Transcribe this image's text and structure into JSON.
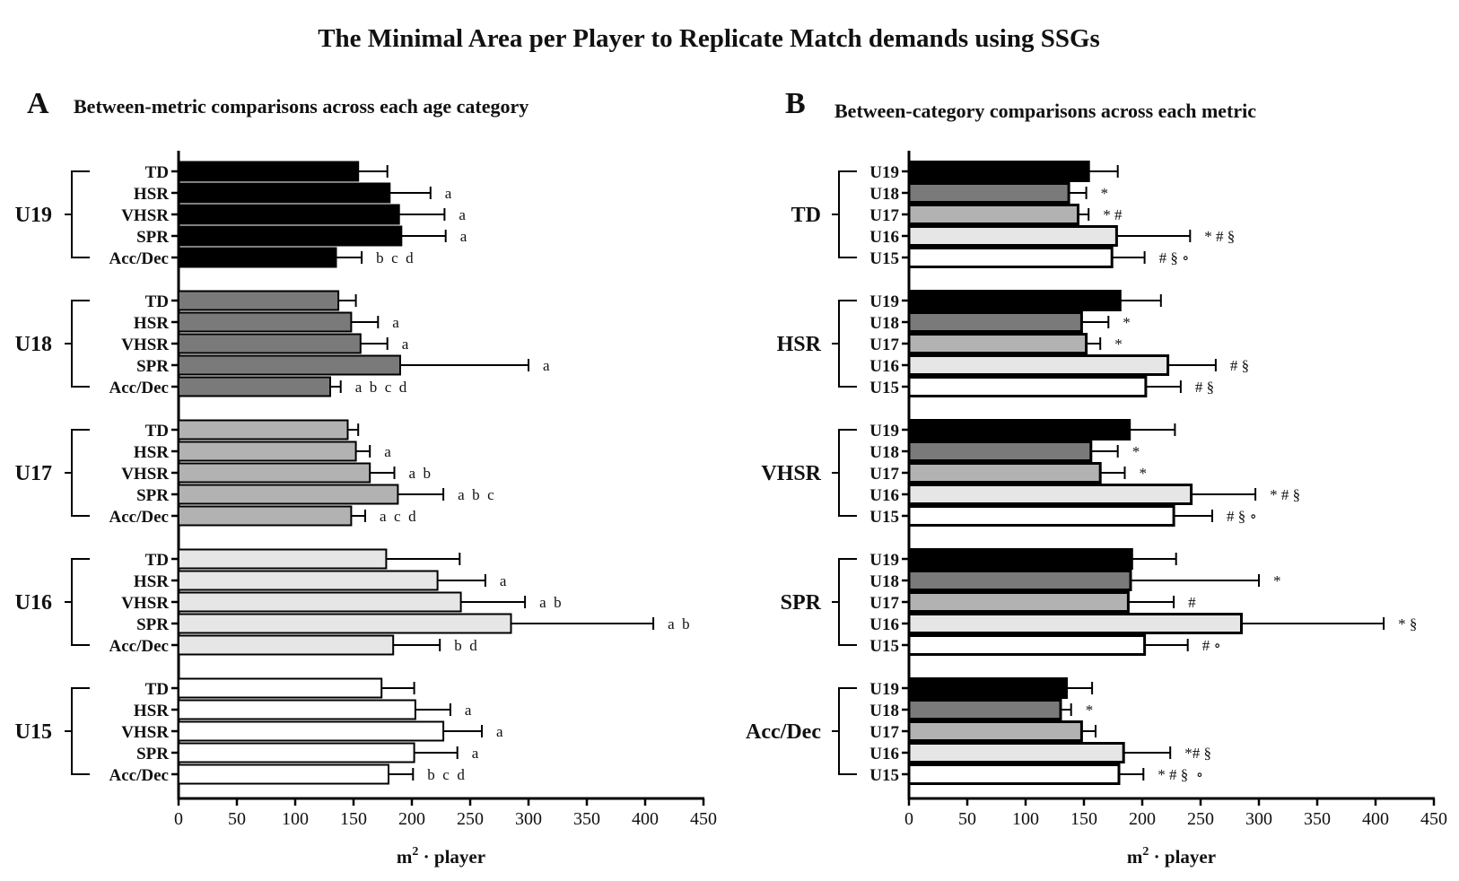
{
  "title": "The Minimal Area per Player to Replicate  Match demands using SSGs",
  "colors": {
    "U19": "#000000",
    "U18": "#7a7a7a",
    "U17": "#b2b2b2",
    "U16": "#e6e6e6",
    "U15": "#ffffff",
    "TD": "#000000",
    "HSR": "#666666",
    "VHSR": "#a6a6a6",
    "SPR": "#e0e0e0",
    "Acc/Dec": "#ffffff"
  },
  "chart_data": [
    {
      "panel": "A",
      "type": "bar",
      "orientation": "horizontal",
      "title": "Between-metric comparisons across each age category",
      "xlabel": "m2 · player",
      "xlabel_main": "m",
      "xlabel_sup": "2",
      "xlabel_rest": " · player",
      "xlim": [
        0,
        450
      ],
      "xticks": [
        0,
        50,
        100,
        150,
        200,
        250,
        300,
        350,
        400,
        450
      ],
      "groups": [
        {
          "name": "U19",
          "items": [
            {
              "label": "TD",
              "value": 154,
              "error": 25,
              "annotation": ""
            },
            {
              "label": "HSR",
              "value": 181,
              "error": 35,
              "annotation": "a"
            },
            {
              "label": "VHSR",
              "value": 189,
              "error": 39,
              "annotation": "a"
            },
            {
              "label": "SPR",
              "value": 191,
              "error": 38,
              "annotation": "a"
            },
            {
              "label": "Acc/Dec",
              "value": 135,
              "error": 22,
              "annotation": "b  c  d"
            }
          ]
        },
        {
          "name": "U18",
          "items": [
            {
              "label": "TD",
              "value": 137,
              "error": 15,
              "annotation": ""
            },
            {
              "label": "HSR",
              "value": 148,
              "error": 23,
              "annotation": "a"
            },
            {
              "label": "VHSR",
              "value": 156,
              "error": 23,
              "annotation": "a"
            },
            {
              "label": "SPR",
              "value": 190,
              "error": 110,
              "annotation": "a"
            },
            {
              "label": "Acc/Dec",
              "value": 130,
              "error": 9,
              "annotation": "a  b  c  d"
            }
          ]
        },
        {
          "name": "U17",
          "items": [
            {
              "label": "TD",
              "value": 145,
              "error": 9,
              "annotation": ""
            },
            {
              "label": "HSR",
              "value": 152,
              "error": 12,
              "annotation": "a"
            },
            {
              "label": "VHSR",
              "value": 164,
              "error": 21,
              "annotation": "a  b"
            },
            {
              "label": "SPR",
              "value": 188,
              "error": 39,
              "annotation": "a  b  c"
            },
            {
              "label": "Acc/Dec",
              "value": 148,
              "error": 12,
              "annotation": "a  c  d"
            }
          ]
        },
        {
          "name": "U16",
          "items": [
            {
              "label": "TD",
              "value": 178,
              "error": 63,
              "annotation": ""
            },
            {
              "label": "HSR",
              "value": 222,
              "error": 41,
              "annotation": "a"
            },
            {
              "label": "VHSR",
              "value": 242,
              "error": 55,
              "annotation": "a  b"
            },
            {
              "label": "SPR",
              "value": 285,
              "error": 122,
              "annotation": "a  b"
            },
            {
              "label": "Acc/Dec",
              "value": 184,
              "error": 40,
              "annotation": "b  d"
            }
          ]
        },
        {
          "name": "U15",
          "items": [
            {
              "label": "TD",
              "value": 174,
              "error": 28,
              "annotation": ""
            },
            {
              "label": "HSR",
              "value": 203,
              "error": 30,
              "annotation": "a"
            },
            {
              "label": "VHSR",
              "value": 227,
              "error": 33,
              "annotation": "a"
            },
            {
              "label": "SPR",
              "value": 202,
              "error": 37,
              "annotation": "a"
            },
            {
              "label": "Acc/Dec",
              "value": 180,
              "error": 21,
              "annotation": "b  c  d"
            }
          ]
        }
      ]
    },
    {
      "panel": "B",
      "type": "bar",
      "orientation": "horizontal",
      "title": "Between-category comparisons across each metric",
      "xlabel": "m2 · player",
      "xlabel_main": "m",
      "xlabel_sup": "2",
      "xlabel_rest": " · player",
      "xlim": [
        0,
        450
      ],
      "xticks": [
        0,
        50,
        100,
        150,
        200,
        250,
        300,
        350,
        400,
        450
      ],
      "groups": [
        {
          "name": "TD",
          "items": [
            {
              "label": "U19",
              "value": 154,
              "error": 25,
              "annotation": ""
            },
            {
              "label": "U18",
              "value": 137,
              "error": 15,
              "annotation": "*"
            },
            {
              "label": "U17",
              "value": 145,
              "error": 9,
              "annotation": "* #"
            },
            {
              "label": "U16",
              "value": 178,
              "error": 63,
              "annotation": "* # §"
            },
            {
              "label": "U15",
              "value": 174,
              "error": 28,
              "annotation": "# § ∘"
            }
          ]
        },
        {
          "name": "HSR",
          "items": [
            {
              "label": "U19",
              "value": 181,
              "error": 35,
              "annotation": ""
            },
            {
              "label": "U18",
              "value": 148,
              "error": 23,
              "annotation": "*"
            },
            {
              "label": "U17",
              "value": 152,
              "error": 12,
              "annotation": "*"
            },
            {
              "label": "U16",
              "value": 222,
              "error": 41,
              "annotation": "# §"
            },
            {
              "label": "U15",
              "value": 203,
              "error": 30,
              "annotation": "# §"
            }
          ]
        },
        {
          "name": "VHSR",
          "items": [
            {
              "label": "U19",
              "value": 189,
              "error": 39,
              "annotation": ""
            },
            {
              "label": "U18",
              "value": 156,
              "error": 23,
              "annotation": "*"
            },
            {
              "label": "U17",
              "value": 164,
              "error": 21,
              "annotation": "*"
            },
            {
              "label": "U16",
              "value": 242,
              "error": 55,
              "annotation": "* # §"
            },
            {
              "label": "U15",
              "value": 227,
              "error": 33,
              "annotation": "# § ∘"
            }
          ]
        },
        {
          "name": "SPR",
          "items": [
            {
              "label": "U19",
              "value": 191,
              "error": 38,
              "annotation": ""
            },
            {
              "label": "U18",
              "value": 190,
              "error": 110,
              "annotation": "*"
            },
            {
              "label": "U17",
              "value": 188,
              "error": 39,
              "annotation": "#"
            },
            {
              "label": "U16",
              "value": 285,
              "error": 122,
              "annotation": "* §"
            },
            {
              "label": "U15",
              "value": 202,
              "error": 37,
              "annotation": "# ∘"
            }
          ]
        },
        {
          "name": "Acc/Dec",
          "items": [
            {
              "label": "U19",
              "value": 135,
              "error": 22,
              "annotation": ""
            },
            {
              "label": "U18",
              "value": 130,
              "error": 9,
              "annotation": "*"
            },
            {
              "label": "U17",
              "value": 148,
              "error": 12,
              "annotation": ""
            },
            {
              "label": "U16",
              "value": 184,
              "error": 40,
              "annotation": "*# §"
            },
            {
              "label": "U15",
              "value": 180,
              "error": 21,
              "annotation": "* # §  ∘"
            }
          ]
        }
      ]
    }
  ]
}
